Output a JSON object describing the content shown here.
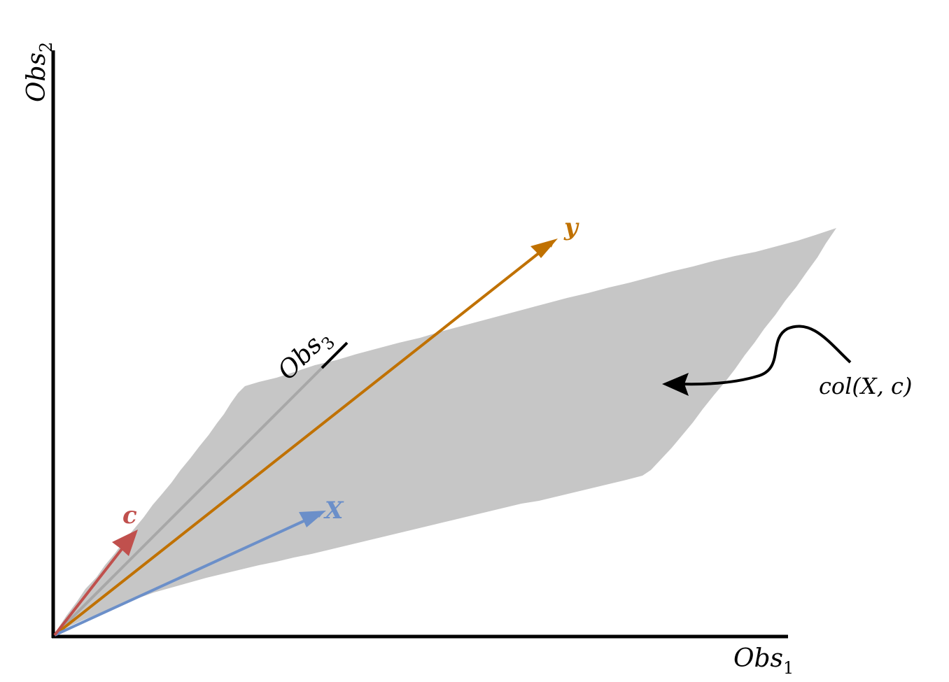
{
  "axes": {
    "x": {
      "label": "Obs",
      "sub": "1"
    },
    "y": {
      "label": "Obs",
      "sub": "2"
    },
    "z": {
      "label": "Obs",
      "sub": "3"
    }
  },
  "vectors": {
    "c": {
      "label": "c",
      "color": "#c0504d"
    },
    "x": {
      "label": "X",
      "color": "#6b8fc9"
    },
    "y": {
      "label": "y",
      "color": "#c07100"
    }
  },
  "plane": {
    "label": "col(X, c)",
    "color": "#c6c6c6"
  }
}
